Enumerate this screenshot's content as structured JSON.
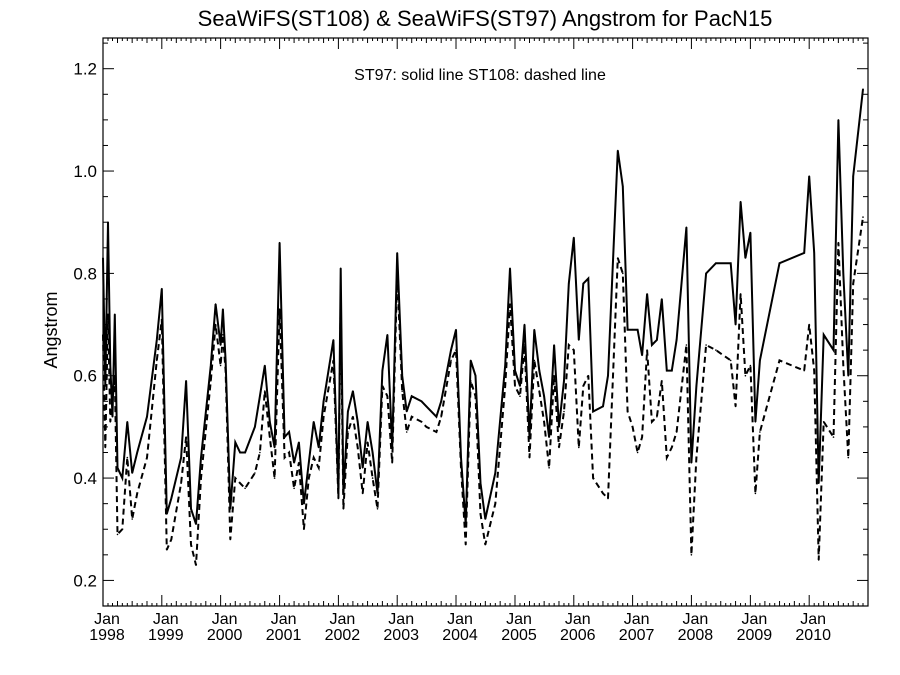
{
  "chart_data": {
    "type": "line",
    "title": "SeaWiFS(ST108) & SeaWiFS(ST97)  Angstrom for PacN15",
    "annotation": "ST97: solid line   ST108: dashed line",
    "xlabel": "",
    "ylabel": "Angstrom",
    "xlim": [
      "1998-01-01",
      "2010-12-31"
    ],
    "ylim": [
      0.15,
      1.26
    ],
    "yticks": [
      "0.2",
      "0.4",
      "0.6",
      "0.8",
      "1.0",
      "1.2"
    ],
    "xtick_month": "Jan",
    "xtick_years": [
      "1998",
      "1999",
      "2000",
      "2001",
      "2002",
      "2003",
      "2004",
      "2005",
      "2006",
      "2007",
      "2008",
      "2009",
      "2010"
    ],
    "series": [
      {
        "name": "ST97",
        "style": "solid",
        "color": "#000000",
        "points": [
          [
            "1998-01-01",
            0.83
          ],
          [
            "1998-01-15",
            0.58
          ],
          [
            "1998-02-01",
            0.9
          ],
          [
            "1998-02-15",
            0.62
          ],
          [
            "1998-03-01",
            0.52
          ],
          [
            "1998-03-15",
            0.72
          ],
          [
            "1998-04-01",
            0.42
          ],
          [
            "1998-05-01",
            0.4
          ],
          [
            "1998-06-01",
            0.51
          ],
          [
            "1998-07-01",
            0.41
          ],
          [
            "1998-08-01",
            0.45
          ],
          [
            "1998-10-01",
            0.52
          ],
          [
            "1998-12-01",
            0.67
          ],
          [
            "1999-01-01",
            0.77
          ],
          [
            "1999-02-01",
            0.33
          ],
          [
            "1999-03-01",
            0.36
          ],
          [
            "1999-05-01",
            0.44
          ],
          [
            "1999-06-01",
            0.59
          ],
          [
            "1999-07-01",
            0.34
          ],
          [
            "1999-08-01",
            0.31
          ],
          [
            "1999-09-01",
            0.44
          ],
          [
            "1999-11-01",
            0.62
          ],
          [
            "1999-12-01",
            0.74
          ],
          [
            "2000-01-01",
            0.66
          ],
          [
            "2000-01-15",
            0.73
          ],
          [
            "2000-02-01",
            0.63
          ],
          [
            "2000-03-01",
            0.34
          ],
          [
            "2000-04-01",
            0.47
          ],
          [
            "2000-05-01",
            0.45
          ],
          [
            "2000-06-01",
            0.45
          ],
          [
            "2000-08-01",
            0.5
          ],
          [
            "2000-09-01",
            0.56
          ],
          [
            "2000-10-01",
            0.62
          ],
          [
            "2000-11-01",
            0.51
          ],
          [
            "2000-12-01",
            0.46
          ],
          [
            "2001-01-01",
            0.86
          ],
          [
            "2001-02-01",
            0.48
          ],
          [
            "2001-03-01",
            0.49
          ],
          [
            "2001-04-01",
            0.43
          ],
          [
            "2001-05-01",
            0.47
          ],
          [
            "2001-06-01",
            0.35
          ],
          [
            "2001-07-01",
            0.43
          ],
          [
            "2001-08-01",
            0.51
          ],
          [
            "2001-09-01",
            0.46
          ],
          [
            "2001-10-01",
            0.55
          ],
          [
            "2001-12-01",
            0.67
          ],
          [
            "2002-01-01",
            0.37
          ],
          [
            "2002-01-15",
            0.81
          ],
          [
            "2002-02-01",
            0.37
          ],
          [
            "2002-03-01",
            0.53
          ],
          [
            "2002-04-01",
            0.57
          ],
          [
            "2002-05-01",
            0.51
          ],
          [
            "2002-06-01",
            0.42
          ],
          [
            "2002-07-01",
            0.51
          ],
          [
            "2002-08-01",
            0.45
          ],
          [
            "2002-09-01",
            0.37
          ],
          [
            "2002-10-01",
            0.61
          ],
          [
            "2002-11-01",
            0.68
          ],
          [
            "2002-12-01",
            0.46
          ],
          [
            "2003-01-01",
            0.84
          ],
          [
            "2003-02-01",
            0.6
          ],
          [
            "2003-03-01",
            0.53
          ],
          [
            "2003-04-01",
            0.56
          ],
          [
            "2003-06-01",
            0.55
          ],
          [
            "2003-07-01",
            0.54
          ],
          [
            "2003-09-01",
            0.52
          ],
          [
            "2003-10-01",
            0.55
          ],
          [
            "2003-12-01",
            0.65
          ],
          [
            "2004-01-01",
            0.69
          ],
          [
            "2004-02-01",
            0.44
          ],
          [
            "2004-03-01",
            0.31
          ],
          [
            "2004-04-01",
            0.63
          ],
          [
            "2004-05-01",
            0.6
          ],
          [
            "2004-06-01",
            0.39
          ],
          [
            "2004-07-01",
            0.32
          ],
          [
            "2004-09-01",
            0.41
          ],
          [
            "2004-11-01",
            0.62
          ],
          [
            "2004-12-01",
            0.81
          ],
          [
            "2005-01-01",
            0.61
          ],
          [
            "2005-02-01",
            0.58
          ],
          [
            "2005-03-01",
            0.7
          ],
          [
            "2005-04-01",
            0.48
          ],
          [
            "2005-05-01",
            0.69
          ],
          [
            "2005-06-01",
            0.61
          ],
          [
            "2005-07-01",
            0.56
          ],
          [
            "2005-08-01",
            0.48
          ],
          [
            "2005-09-01",
            0.66
          ],
          [
            "2005-10-01",
            0.5
          ],
          [
            "2005-11-01",
            0.59
          ],
          [
            "2005-12-01",
            0.78
          ],
          [
            "2006-01-01",
            0.87
          ],
          [
            "2006-02-01",
            0.67
          ],
          [
            "2006-03-01",
            0.78
          ],
          [
            "2006-04-01",
            0.79
          ],
          [
            "2006-05-01",
            0.53
          ],
          [
            "2006-07-01",
            0.54
          ],
          [
            "2006-08-01",
            0.6
          ],
          [
            "2006-10-01",
            1.04
          ],
          [
            "2006-11-01",
            0.97
          ],
          [
            "2006-12-01",
            0.69
          ],
          [
            "2007-01-01",
            0.69
          ],
          [
            "2007-02-01",
            0.69
          ],
          [
            "2007-03-01",
            0.64
          ],
          [
            "2007-04-01",
            0.76
          ],
          [
            "2007-05-01",
            0.66
          ],
          [
            "2007-06-01",
            0.67
          ],
          [
            "2007-07-01",
            0.75
          ],
          [
            "2007-08-01",
            0.61
          ],
          [
            "2007-09-01",
            0.61
          ],
          [
            "2007-10-01",
            0.67
          ],
          [
            "2007-12-01",
            0.89
          ],
          [
            "2008-01-01",
            0.43
          ],
          [
            "2008-02-01",
            0.58
          ],
          [
            "2008-04-01",
            0.8
          ],
          [
            "2008-06-01",
            0.82
          ],
          [
            "2008-09-01",
            0.82
          ],
          [
            "2008-10-01",
            0.7
          ],
          [
            "2008-11-01",
            0.94
          ],
          [
            "2008-12-01",
            0.83
          ],
          [
            "2009-01-01",
            0.88
          ],
          [
            "2009-02-01",
            0.51
          ],
          [
            "2009-03-01",
            0.63
          ],
          [
            "2009-07-01",
            0.82
          ],
          [
            "2009-12-01",
            0.84
          ],
          [
            "2010-01-01",
            0.99
          ],
          [
            "2010-02-01",
            0.84
          ],
          [
            "2010-03-01",
            0.39
          ],
          [
            "2010-04-01",
            0.68
          ],
          [
            "2010-06-01",
            0.65
          ],
          [
            "2010-07-01",
            1.1
          ],
          [
            "2010-08-01",
            0.8
          ],
          [
            "2010-09-01",
            0.6
          ],
          [
            "2010-10-01",
            0.99
          ],
          [
            "2010-12-01",
            1.16
          ]
        ]
      },
      {
        "name": "ST108",
        "style": "dashed",
        "color": "#000000",
        "points": [
          [
            "1998-01-01",
            0.68
          ],
          [
            "1998-01-15",
            0.46
          ],
          [
            "1998-02-01",
            0.72
          ],
          [
            "1998-02-15",
            0.51
          ],
          [
            "1998-03-01",
            0.55
          ],
          [
            "1998-03-15",
            0.6
          ],
          [
            "1998-04-01",
            0.29
          ],
          [
            "1998-05-01",
            0.3
          ],
          [
            "1998-06-01",
            0.44
          ],
          [
            "1998-07-01",
            0.32
          ],
          [
            "1998-08-01",
            0.37
          ],
          [
            "1998-10-01",
            0.44
          ],
          [
            "1998-12-01",
            0.63
          ],
          [
            "1999-01-01",
            0.71
          ],
          [
            "1999-02-01",
            0.26
          ],
          [
            "1999-03-01",
            0.28
          ],
          [
            "1999-05-01",
            0.39
          ],
          [
            "1999-06-01",
            0.48
          ],
          [
            "1999-07-01",
            0.27
          ],
          [
            "1999-08-01",
            0.23
          ],
          [
            "1999-09-01",
            0.4
          ],
          [
            "1999-11-01",
            0.59
          ],
          [
            "1999-12-01",
            0.7
          ],
          [
            "2000-01-01",
            0.62
          ],
          [
            "2000-01-15",
            0.68
          ],
          [
            "2000-02-01",
            0.61
          ],
          [
            "2000-03-01",
            0.28
          ],
          [
            "2000-04-01",
            0.4
          ],
          [
            "2000-05-01",
            0.39
          ],
          [
            "2000-06-01",
            0.38
          ],
          [
            "2000-08-01",
            0.41
          ],
          [
            "2000-09-01",
            0.45
          ],
          [
            "2000-10-01",
            0.57
          ],
          [
            "2000-11-01",
            0.48
          ],
          [
            "2000-12-01",
            0.4
          ],
          [
            "2001-01-01",
            0.73
          ],
          [
            "2001-02-01",
            0.44
          ],
          [
            "2001-03-01",
            0.45
          ],
          [
            "2001-04-01",
            0.38
          ],
          [
            "2001-05-01",
            0.43
          ],
          [
            "2001-06-01",
            0.3
          ],
          [
            "2001-07-01",
            0.4
          ],
          [
            "2001-08-01",
            0.44
          ],
          [
            "2001-09-01",
            0.42
          ],
          [
            "2001-10-01",
            0.52
          ],
          [
            "2001-12-01",
            0.63
          ],
          [
            "2002-01-01",
            0.36
          ],
          [
            "2002-01-15",
            0.75
          ],
          [
            "2002-02-01",
            0.34
          ],
          [
            "2002-03-01",
            0.49
          ],
          [
            "2002-04-01",
            0.52
          ],
          [
            "2002-05-01",
            0.46
          ],
          [
            "2002-06-01",
            0.37
          ],
          [
            "2002-07-01",
            0.47
          ],
          [
            "2002-08-01",
            0.4
          ],
          [
            "2002-09-01",
            0.34
          ],
          [
            "2002-10-01",
            0.58
          ],
          [
            "2002-11-01",
            0.56
          ],
          [
            "2002-12-01",
            0.43
          ],
          [
            "2003-01-01",
            0.8
          ],
          [
            "2003-02-01",
            0.57
          ],
          [
            "2003-03-01",
            0.49
          ],
          [
            "2003-04-01",
            0.52
          ],
          [
            "2003-06-01",
            0.51
          ],
          [
            "2003-07-01",
            0.5
          ],
          [
            "2003-09-01",
            0.49
          ],
          [
            "2003-10-01",
            0.52
          ],
          [
            "2003-12-01",
            0.63
          ],
          [
            "2004-01-01",
            0.65
          ],
          [
            "2004-02-01",
            0.42
          ],
          [
            "2004-03-01",
            0.27
          ],
          [
            "2004-04-01",
            0.59
          ],
          [
            "2004-05-01",
            0.56
          ],
          [
            "2004-06-01",
            0.33
          ],
          [
            "2004-07-01",
            0.27
          ],
          [
            "2004-09-01",
            0.35
          ],
          [
            "2004-11-01",
            0.58
          ],
          [
            "2004-12-01",
            0.74
          ],
          [
            "2005-01-01",
            0.58
          ],
          [
            "2005-02-01",
            0.56
          ],
          [
            "2005-03-01",
            0.66
          ],
          [
            "2005-04-01",
            0.44
          ],
          [
            "2005-05-01",
            0.63
          ],
          [
            "2005-06-01",
            0.57
          ],
          [
            "2005-07-01",
            0.51
          ],
          [
            "2005-08-01",
            0.42
          ],
          [
            "2005-09-01",
            0.6
          ],
          [
            "2005-10-01",
            0.46
          ],
          [
            "2005-11-01",
            0.53
          ],
          [
            "2005-12-01",
            0.66
          ],
          [
            "2006-01-01",
            0.65
          ],
          [
            "2006-02-01",
            0.46
          ],
          [
            "2006-03-01",
            0.58
          ],
          [
            "2006-04-01",
            0.6
          ],
          [
            "2006-05-01",
            0.4
          ],
          [
            "2006-07-01",
            0.37
          ],
          [
            "2006-08-01",
            0.36
          ],
          [
            "2006-10-01",
            0.83
          ],
          [
            "2006-11-01",
            0.8
          ],
          [
            "2006-12-01",
            0.53
          ],
          [
            "2007-01-01",
            0.5
          ],
          [
            "2007-02-01",
            0.45
          ],
          [
            "2007-03-01",
            0.48
          ],
          [
            "2007-04-01",
            0.65
          ],
          [
            "2007-05-01",
            0.51
          ],
          [
            "2007-06-01",
            0.52
          ],
          [
            "2007-07-01",
            0.59
          ],
          [
            "2007-08-01",
            0.44
          ],
          [
            "2007-09-01",
            0.46
          ],
          [
            "2007-10-01",
            0.49
          ],
          [
            "2007-12-01",
            0.66
          ],
          [
            "2008-01-01",
            0.25
          ],
          [
            "2008-02-01",
            0.44
          ],
          [
            "2008-04-01",
            0.66
          ],
          [
            "2008-06-01",
            0.65
          ],
          [
            "2008-09-01",
            0.63
          ],
          [
            "2008-10-01",
            0.54
          ],
          [
            "2008-11-01",
            0.76
          ],
          [
            "2008-12-01",
            0.6
          ],
          [
            "2009-01-01",
            0.62
          ],
          [
            "2009-02-01",
            0.37
          ],
          [
            "2009-03-01",
            0.49
          ],
          [
            "2009-07-01",
            0.63
          ],
          [
            "2009-12-01",
            0.61
          ],
          [
            "2010-01-01",
            0.7
          ],
          [
            "2010-02-01",
            0.61
          ],
          [
            "2010-03-01",
            0.24
          ],
          [
            "2010-04-01",
            0.51
          ],
          [
            "2010-06-01",
            0.48
          ],
          [
            "2010-07-01",
            0.86
          ],
          [
            "2010-08-01",
            0.62
          ],
          [
            "2010-09-01",
            0.44
          ],
          [
            "2010-10-01",
            0.78
          ],
          [
            "2010-12-01",
            0.91
          ]
        ]
      }
    ]
  }
}
